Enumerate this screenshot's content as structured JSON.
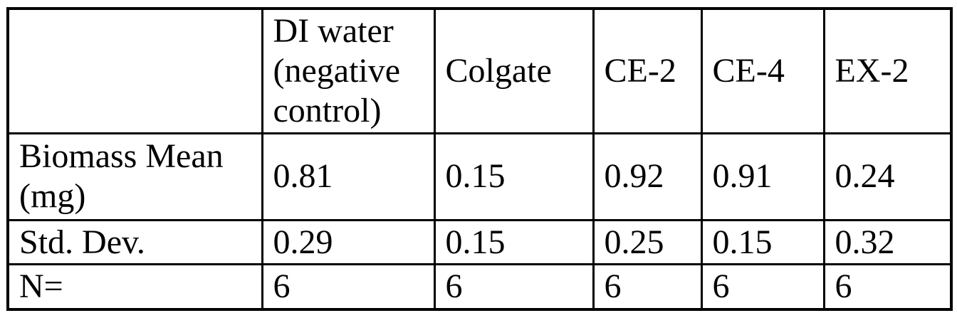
{
  "table": {
    "columns": [
      "",
      "DI water (negative control)",
      "Colgate",
      "CE-2",
      "CE-4",
      "EX-2"
    ],
    "rows": [
      {
        "label": "Biomass Mean (mg)",
        "values": [
          "0.81",
          "0.15",
          "0.92",
          "0.91",
          "0.24"
        ]
      },
      {
        "label": "Std. Dev.",
        "values": [
          "0.29",
          "0.15",
          "0.25",
          "0.15",
          "0.32"
        ]
      },
      {
        "label": "N=",
        "values": [
          "6",
          "6",
          "6",
          "6",
          "6"
        ]
      }
    ],
    "colors": {
      "border": "#000000",
      "text": "#000000",
      "background": "#ffffff"
    }
  }
}
